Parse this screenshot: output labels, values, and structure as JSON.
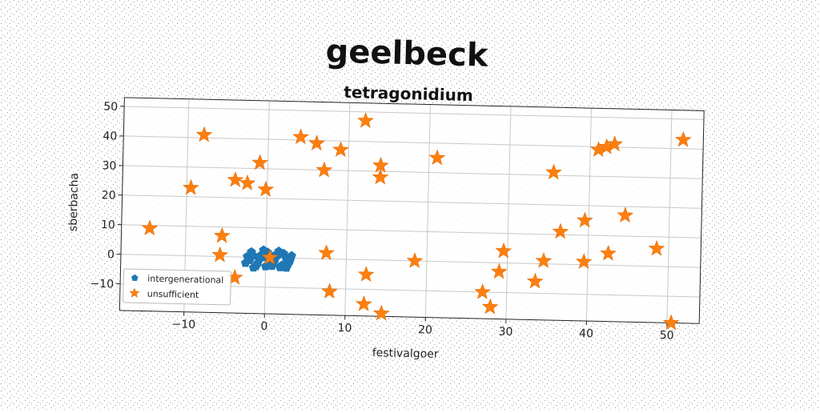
{
  "title": "geelbeck",
  "chart_data": {
    "type": "scatter",
    "title": "tetragonidium",
    "xlabel": "festivalgoer",
    "ylabel": "sberbacha",
    "xlim": [
      -18,
      54
    ],
    "ylim": [
      -19,
      53
    ],
    "xticks": [
      -10,
      0,
      10,
      20,
      30,
      40,
      50
    ],
    "yticks": [
      -10,
      0,
      10,
      20,
      30,
      40,
      50
    ],
    "grid": true,
    "legend": "lower-left",
    "series": [
      {
        "name": "intergenerational",
        "marker": "pentagon",
        "color": "#1f77b4",
        "points": [
          [
            -2.0,
            -1.0
          ],
          [
            -1.5,
            0.5
          ],
          [
            -1.0,
            -2.0
          ],
          [
            -0.5,
            1.0
          ],
          [
            0.0,
            -3.0
          ],
          [
            0.5,
            0.5
          ],
          [
            1.0,
            -1.5
          ],
          [
            1.5,
            1.0
          ],
          [
            2.0,
            -2.5
          ],
          [
            2.5,
            0.0
          ],
          [
            3.0,
            -1.0
          ],
          [
            -2.5,
            -2.0
          ],
          [
            -1.8,
            1.8
          ],
          [
            -0.8,
            -0.5
          ],
          [
            0.2,
            1.8
          ],
          [
            1.2,
            -0.3
          ],
          [
            2.2,
            1.5
          ],
          [
            2.8,
            -2.0
          ],
          [
            -1.2,
            -3.0
          ],
          [
            0.8,
            -2.8
          ],
          [
            1.8,
            -3.2
          ],
          [
            -2.3,
            0.2
          ],
          [
            0.4,
            -1.0
          ],
          [
            1.6,
            2.2
          ],
          [
            -0.3,
            2.5
          ],
          [
            3.2,
            0.8
          ],
          [
            2.6,
            -3.3
          ],
          [
            -1.5,
            -3.5
          ],
          [
            0.0,
            0.0
          ],
          [
            1.0,
            0.6
          ]
        ]
      },
      {
        "name": "unsufficient",
        "marker": "star",
        "color": "#ff7f0e",
        "points": [
          [
            -14.5,
            9
          ],
          [
            -8,
            41
          ],
          [
            -9.5,
            23
          ],
          [
            -5.5,
            7
          ],
          [
            -5.7,
            0.5
          ],
          [
            -3.8,
            -7
          ],
          [
            -4,
            26
          ],
          [
            -2.5,
            25
          ],
          [
            -1,
            32
          ],
          [
            -0.2,
            23
          ],
          [
            0.5,
            0
          ],
          [
            4,
            41
          ],
          [
            6,
            39
          ],
          [
            7,
            30
          ],
          [
            7.5,
            2
          ],
          [
            8,
            -11
          ],
          [
            9,
            37
          ],
          [
            12,
            47
          ],
          [
            12.5,
            -5
          ],
          [
            12.3,
            -15
          ],
          [
            14,
            32
          ],
          [
            14,
            28
          ],
          [
            14.5,
            -18
          ],
          [
            18.5,
            0
          ],
          [
            21,
            35
          ],
          [
            27,
            -10
          ],
          [
            28,
            -15
          ],
          [
            29,
            -3
          ],
          [
            29.5,
            4
          ],
          [
            33.5,
            -6
          ],
          [
            34.5,
            1
          ],
          [
            35.5,
            31
          ],
          [
            36.5,
            11
          ],
          [
            39.5,
            1
          ],
          [
            39.5,
            15
          ],
          [
            41,
            39
          ],
          [
            42,
            40
          ],
          [
            42.5,
            4
          ],
          [
            43,
            41
          ],
          [
            44.5,
            17
          ],
          [
            48.5,
            6
          ],
          [
            50.5,
            -19
          ],
          [
            51.5,
            43
          ]
        ]
      }
    ]
  }
}
